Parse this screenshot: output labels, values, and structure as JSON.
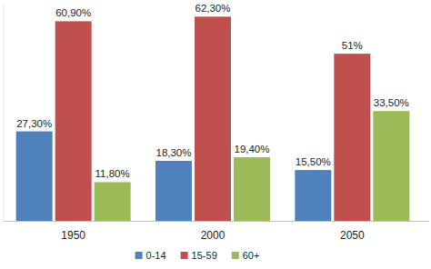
{
  "chart_data": {
    "type": "bar",
    "categories": [
      "1950",
      "2000",
      "2050"
    ],
    "series": [
      {
        "name": "0-14",
        "color": "#4f81bd",
        "values": [
          27.3,
          18.3,
          15.5
        ],
        "value_labels": [
          "27,30%",
          "18,30%",
          "15,50%"
        ]
      },
      {
        "name": "15-59",
        "color": "#c0504d",
        "values": [
          60.9,
          62.3,
          51
        ],
        "value_labels": [
          "60,90%",
          "62,30%",
          "51%"
        ]
      },
      {
        "name": "60+",
        "color": "#9bbb59",
        "values": [
          11.8,
          19.4,
          33.5
        ],
        "value_labels": [
          "11,80%",
          "19,40%",
          "33,50%"
        ]
      }
    ],
    "ylim": [
      0,
      66
    ],
    "grid": false,
    "data_labels": true,
    "tick_labels": "x",
    "legend": "bottom"
  }
}
